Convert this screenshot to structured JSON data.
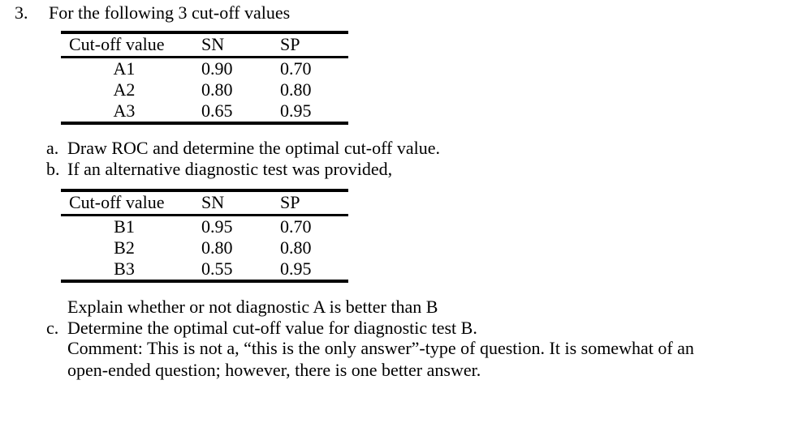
{
  "page": {
    "background": "#ffffff",
    "text_color": "#000000"
  },
  "question": {
    "number": "3.",
    "intro": "For the following 3 cut-off values"
  },
  "table_a": {
    "headers": [
      "Cut-off value",
      "SN",
      "SP"
    ],
    "rows": [
      [
        "A1",
        "0.90",
        "0.70"
      ],
      [
        "A2",
        "0.80",
        "0.80"
      ],
      [
        "A3",
        "0.65",
        "0.95"
      ]
    ]
  },
  "items": {
    "a_marker": "a.",
    "a_text": "Draw ROC and determine the optimal cut-off value.",
    "b_marker": "b.",
    "b_text": "If an alternative diagnostic test was provided,",
    "c_marker": "c.",
    "c_text": "Determine the optimal cut-off value for diagnostic test B."
  },
  "table_b": {
    "headers": [
      "Cut-off value",
      "SN",
      "SP"
    ],
    "rows": [
      [
        "B1",
        "0.95",
        "0.70"
      ],
      [
        "B2",
        "0.80",
        "0.80"
      ],
      [
        "B3",
        "0.55",
        "0.95"
      ]
    ]
  },
  "closing": {
    "explain_line": "Explain whether or not diagnostic A is better than B",
    "comment_line1": "Comment: This is not a, “this is the only answer”-type of question. It is somewhat of an",
    "comment_line2": "open-ended question; however, there is one better answer."
  }
}
